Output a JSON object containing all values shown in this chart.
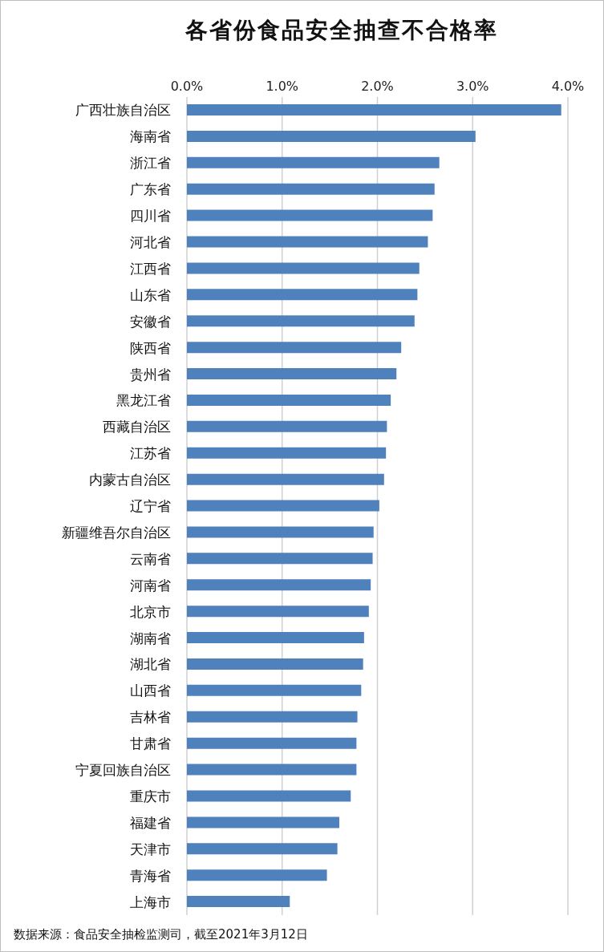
{
  "chart_data": {
    "type": "bar",
    "orientation": "horizontal",
    "title": "各省份食品安全抽查不合格率",
    "categories": [
      "广西壮族自治区",
      "海南省",
      "浙江省",
      "广东省",
      "四川省",
      "河北省",
      "江西省",
      "山东省",
      "安徽省",
      "陕西省",
      "贵州省",
      "黑龙江省",
      "西藏自治区",
      "江苏省",
      "内蒙古自治区",
      "辽宁省",
      "新疆维吾尔自治区",
      "云南省",
      "河南省",
      "北京市",
      "湖南省",
      "湖北省",
      "山西省",
      "吉林省",
      "甘肃省",
      "宁夏回族自治区",
      "重庆市",
      "福建省",
      "天津市",
      "青海省",
      "上海市"
    ],
    "values": [
      3.93,
      3.03,
      2.65,
      2.6,
      2.58,
      2.53,
      2.44,
      2.42,
      2.39,
      2.25,
      2.2,
      2.14,
      2.1,
      2.09,
      2.07,
      2.02,
      1.96,
      1.95,
      1.93,
      1.91,
      1.86,
      1.85,
      1.83,
      1.79,
      1.78,
      1.78,
      1.72,
      1.6,
      1.58,
      1.47,
      1.08
    ],
    "color": "#4f81bd",
    "xlim": [
      0,
      4
    ],
    "xticks": [
      {
        "value": 0,
        "label": "0.0%"
      },
      {
        "value": 1,
        "label": "1.0%"
      },
      {
        "value": 2,
        "label": "2.0%"
      },
      {
        "value": 3,
        "label": "3.0%"
      },
      {
        "value": 4,
        "label": "4.0%"
      }
    ],
    "grid": "x",
    "annotations": [
      "数据来源：食品安全抽检监测司，截至2021年3月12日"
    ]
  }
}
